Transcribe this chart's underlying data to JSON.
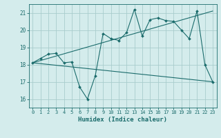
{
  "xlabel": "Humidex (Indice chaleur)",
  "bg_color": "#d4ecec",
  "grid_color": "#a8cccc",
  "line_color": "#1a6b6b",
  "xlim": [
    -0.5,
    23.5
  ],
  "ylim": [
    15.5,
    21.5
  ],
  "yticks": [
    16,
    17,
    18,
    19,
    20,
    21
  ],
  "xticks": [
    0,
    1,
    2,
    3,
    4,
    5,
    6,
    7,
    8,
    9,
    10,
    11,
    12,
    13,
    14,
    15,
    16,
    17,
    18,
    19,
    20,
    21,
    22,
    23
  ],
  "line1_x": [
    0,
    1,
    2,
    3,
    4,
    5,
    6,
    7,
    8,
    9,
    10,
    11,
    12,
    13,
    14,
    15,
    16,
    17,
    18,
    19,
    20,
    21,
    22,
    23
  ],
  "line1_y": [
    18.1,
    18.35,
    18.6,
    18.65,
    18.1,
    18.15,
    16.7,
    16.0,
    17.35,
    19.8,
    19.5,
    19.4,
    19.85,
    21.2,
    19.65,
    20.6,
    20.7,
    20.55,
    20.5,
    20.0,
    19.5,
    21.1,
    18.0,
    17.0
  ],
  "line2_x": [
    0,
    23
  ],
  "line2_y": [
    18.1,
    21.1
  ],
  "line3_x": [
    0,
    23
  ],
  "line3_y": [
    18.1,
    17.0
  ]
}
